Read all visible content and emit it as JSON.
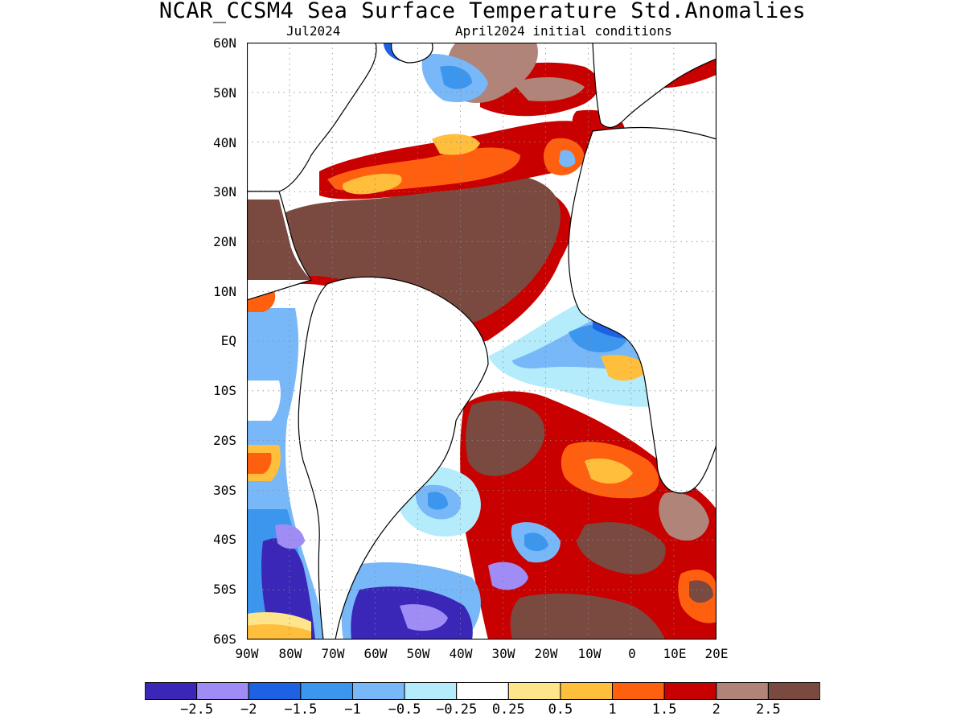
{
  "title": "NCAR_CCSM4 Sea Surface Temperature Std.Anomalies",
  "subtitle_left": "Jul2024",
  "subtitle_right": "April2024 initial conditions",
  "lat_labels": [
    "60N",
    "50N",
    "40N",
    "30N",
    "20N",
    "10N",
    "EQ",
    "10S",
    "20S",
    "30S",
    "40S",
    "50S",
    "60S"
  ],
  "lon_labels": [
    "90W",
    "80W",
    "70W",
    "60W",
    "50W",
    "40W",
    "30W",
    "20W",
    "10W",
    "0",
    "10E",
    "20E"
  ],
  "map_extent": {
    "lon_min": -90,
    "lon_max": 20,
    "lat_min": -60,
    "lat_max": 60
  },
  "colorbar": {
    "colors": [
      "#3a27b8",
      "#a08cf5",
      "#1d62e2",
      "#3c96ee",
      "#78b8f8",
      "#b4ecfc",
      "#ffffff",
      "#fee48a",
      "#ffbe3c",
      "#ff6010",
      "#c90000",
      "#b08478",
      "#7a4a40"
    ],
    "labels": [
      "-2.5",
      "-2",
      "-1.5",
      "-1",
      "-0.5",
      "-0.25",
      "0.25",
      "0.5",
      "1",
      "1.5",
      "2",
      "2.5"
    ]
  }
}
